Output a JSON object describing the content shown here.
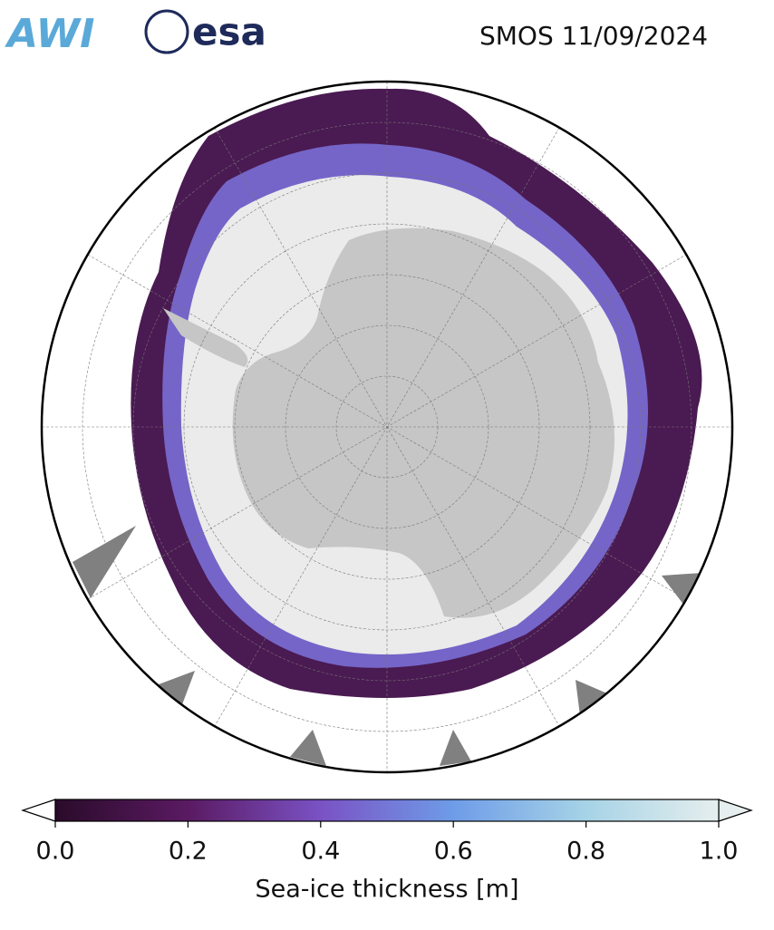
{
  "header": {
    "logos": [
      "AWI",
      "esa"
    ],
    "title": "SMOS 11/09/2024"
  },
  "colorbar": {
    "label": "Sea-ice thickness [m]",
    "lim": [
      0,
      1
    ],
    "ticks": [
      {
        "value": 0,
        "label": "0.0"
      },
      0.2,
      0.4,
      0.6,
      0.8,
      {
        "value": 1,
        "label": "1.0"
      }
    ],
    "colors": [
      "#2a0b2a",
      "#5a1a62",
      "#7a52c4",
      "#6e9ce8",
      "#a6d3e6",
      "#e6eeee"
    ]
  }
}
